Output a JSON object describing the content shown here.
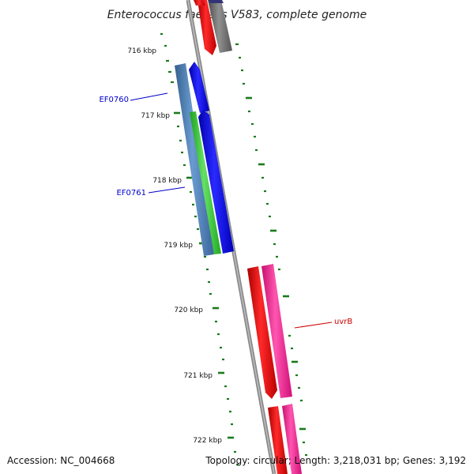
{
  "title": "Enterococcus faecalis V583, complete genome",
  "footer": {
    "accession": "Accession: NC_004668",
    "summary": "Topology: circular; Length: 3,218,031 bp; Genes: 3,192"
  },
  "ruler_labels": [
    "716 kbp",
    "717 kbp",
    "718 kbp",
    "719 kbp",
    "720 kbp",
    "721 kbp",
    "722 kbp"
  ],
  "gene_labels": [
    {
      "text": "EF0760",
      "color": "#0000cc"
    },
    {
      "text": "EF0761",
      "color": "#0000cc"
    },
    {
      "text": "uvrB",
      "color": "#cc0000"
    }
  ],
  "colors": {
    "backbone": "#888888",
    "ruler": "#1a7a1a",
    "steel_blue": "#4f81bd",
    "blue": "#0000ee",
    "green": "#33cc33",
    "red": "#ee0000",
    "pink": "#ff1493",
    "gray": "#707070",
    "navy": "#333377"
  }
}
